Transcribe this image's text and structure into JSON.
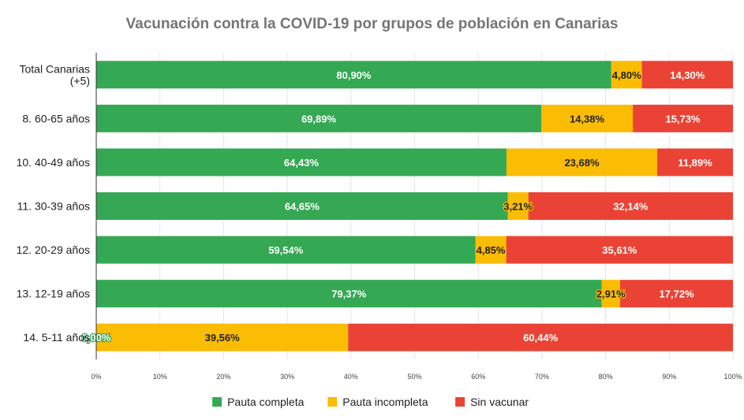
{
  "chart_data": {
    "type": "bar",
    "orientation": "horizontal",
    "stacked": true,
    "title": "Vacunación contra la COVID-19 por grupos de población en Canarias",
    "categories": [
      [
        "Total Canarias",
        "(+5)"
      ],
      [
        "8. 60-65 años"
      ],
      [
        "10. 40-49 años"
      ],
      [
        "11. 30-39 años"
      ],
      [
        "12. 20-29 años"
      ],
      [
        "13. 12-19 años"
      ],
      [
        "14. 5-11 años"
      ]
    ],
    "series": [
      {
        "name": "Pauta completa",
        "color": "#34a853",
        "values": [
          80.9,
          69.89,
          64.43,
          64.65,
          59.54,
          79.37,
          0.0
        ],
        "labels": [
          "80,90%",
          "69,89%",
          "64,43%",
          "64,65%",
          "59,54%",
          "79,37%",
          "0,00%"
        ],
        "label_color": "#ffffff"
      },
      {
        "name": "Pauta incompleta",
        "color": "#fbbc04",
        "values": [
          4.8,
          14.38,
          23.68,
          3.21,
          4.85,
          2.91,
          39.56
        ],
        "labels": [
          "4,80%",
          "14,38%",
          "23,68%",
          "3,21%",
          "4,85%",
          "2,91%",
          "39,56%"
        ],
        "label_color": "#222222"
      },
      {
        "name": "Sin vacunar",
        "color": "#ea4335",
        "values": [
          14.3,
          15.73,
          11.89,
          32.14,
          35.61,
          17.72,
          60.44
        ],
        "labels": [
          "14,30%",
          "15,73%",
          "11,89%",
          "32,14%",
          "35,61%",
          "17,72%",
          "60,44%"
        ],
        "label_color": "#ffffff"
      }
    ],
    "xlim": [
      0,
      100
    ],
    "x_ticks": [
      0,
      10,
      20,
      30,
      40,
      50,
      60,
      70,
      80,
      90,
      100
    ],
    "x_tick_labels": [
      "0%",
      "10%",
      "20%",
      "30%",
      "40%",
      "50%",
      "60%",
      "70%",
      "80%",
      "90%",
      "100%"
    ],
    "grid": true,
    "legend_position": "bottom"
  }
}
